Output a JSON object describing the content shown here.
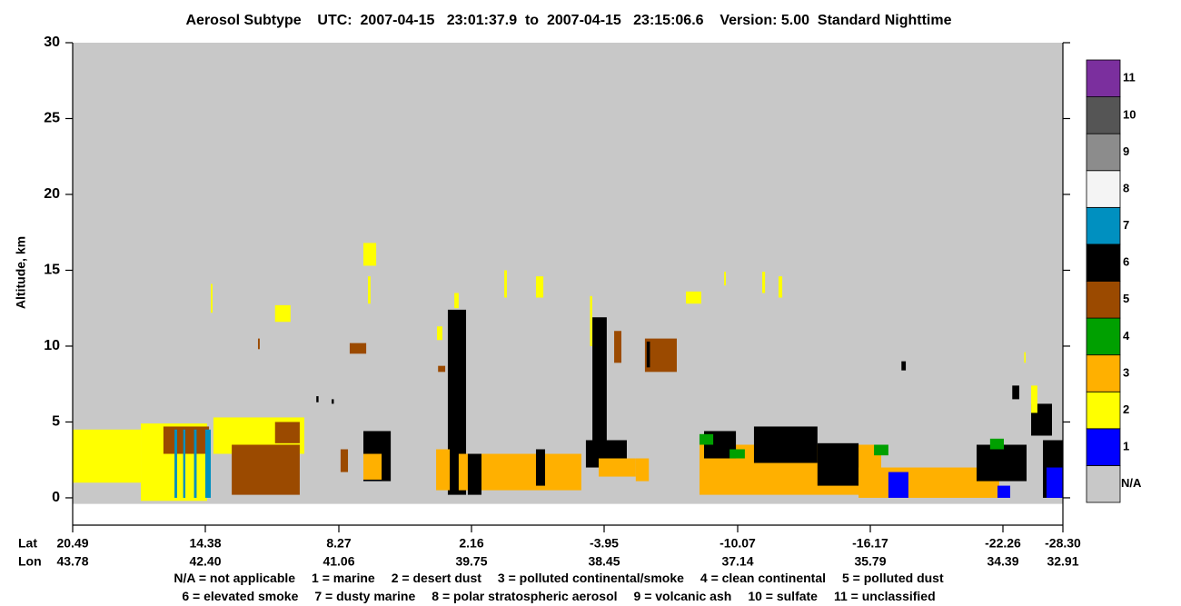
{
  "chart_data": {
    "type": "curtain",
    "title": "Aerosol Subtype    UTC:  2007-04-15   23:01:37.9  to  2007-04-15   23:15:06.6    Version: 5.00  Standard Nighttime",
    "y_label": "Altitude, km",
    "x_row_labels": [
      "Lat",
      "Lon"
    ],
    "xlim": [
      20.49,
      -28.3
    ],
    "xticks": [
      20.49,
      14.38,
      8.27,
      2.16,
      -3.95,
      -10.07,
      -16.17,
      -22.26,
      {
        "value": -28.3,
        "label": "-28.30"
      }
    ],
    "lon_labels": [
      "43.78",
      "42.40",
      "41.06",
      "39.75",
      "38.45",
      "37.14",
      "35.79",
      "34.39",
      "32.91"
    ],
    "ylim": [
      -1.8,
      30
    ],
    "yticks": [
      0,
      5,
      10,
      15,
      20,
      25,
      30
    ],
    "classes": [
      {
        "label": "N/A",
        "color": "#c8c8c8"
      },
      {
        "label": "1",
        "color": "#0000ff"
      },
      {
        "label": "2",
        "color": "#ffff00"
      },
      {
        "label": "3",
        "color": "#ffb000"
      },
      {
        "label": "4",
        "color": "#00a000"
      },
      {
        "label": "5",
        "color": "#9b4a00"
      },
      {
        "label": "6",
        "color": "#000000"
      },
      {
        "label": "7",
        "color": "#0090c0"
      },
      {
        "label": "8",
        "color": "#f4f4f4"
      },
      {
        "label": "9",
        "color": "#8c8c8c"
      },
      {
        "label": "10",
        "color": "#555555"
      },
      {
        "label": "11",
        "color": "#7b2f9e"
      }
    ],
    "key_rows": [
      [
        "N/A = not applicable",
        "1 = marine",
        "2 = desert dust",
        "3 = polluted continental/smoke",
        "4 = clean continental",
        "5 = polluted dust"
      ],
      [
        "6 = elevated smoke",
        "7 = dusty marine",
        "8 = polar stratospheric aerosol",
        "9 = volcanic ash",
        "10 = sulfate",
        "11 = unclassified"
      ]
    ],
    "blocks": [
      {
        "lat": [
          20.49,
          -28.3
        ],
        "alt": [
          -0.4,
          30
        ],
        "subtype": 0
      },
      {
        "lat": [
          20.49,
          17.35
        ],
        "alt": [
          1.0,
          4.5
        ],
        "subtype": 2
      },
      {
        "lat": [
          17.35,
          14.3
        ],
        "alt": [
          -0.2,
          4.9
        ],
        "subtype": 2
      },
      {
        "lat": [
          16.31,
          14.21
        ],
        "alt": [
          2.9,
          4.7
        ],
        "subtype": 5
      },
      {
        "lat": [
          15.8,
          15.68
        ],
        "alt": [
          0,
          4.5
        ],
        "subtype": 7
      },
      {
        "lat": [
          15.4,
          15.3
        ],
        "alt": [
          0,
          4.5
        ],
        "subtype": 7
      },
      {
        "lat": [
          14.9,
          14.78
        ],
        "alt": [
          0,
          4.5
        ],
        "subtype": 7
      },
      {
        "lat": [
          14.38,
          14.13
        ],
        "alt": [
          0,
          4.5
        ],
        "subtype": 7
      },
      {
        "lat": [
          14.01,
          9.85
        ],
        "alt": [
          2.9,
          5.3
        ],
        "subtype": 2
      },
      {
        "lat": [
          13.17,
          10.06
        ],
        "alt": [
          0.2,
          3.5
        ],
        "subtype": 5
      },
      {
        "lat": [
          11.19,
          10.06
        ],
        "alt": [
          3.6,
          5.0
        ],
        "subtype": 5
      },
      {
        "lat": [
          11.19,
          10.48
        ],
        "alt": [
          11.6,
          12.7
        ],
        "subtype": 2
      },
      {
        "lat": [
          11.97,
          11.89
        ],
        "alt": [
          9.8,
          10.5
        ],
        "subtype": 5
      },
      {
        "lat": [
          14.13,
          14.05
        ],
        "alt": [
          12.2,
          14.1
        ],
        "subtype": 2
      },
      {
        "lat": [
          7.14,
          6.55
        ],
        "alt": [
          15.3,
          16.8
        ],
        "subtype": 2
      },
      {
        "lat": [
          6.93,
          6.81
        ],
        "alt": [
          12.8,
          14.6
        ],
        "subtype": 2
      },
      {
        "lat": [
          7.77,
          7.01
        ],
        "alt": [
          9.5,
          10.2
        ],
        "subtype": 5
      },
      {
        "lat": [
          7.14,
          5.88
        ],
        "alt": [
          1.1,
          4.4
        ],
        "subtype": 6
      },
      {
        "lat": [
          7.14,
          6.3
        ],
        "alt": [
          1.2,
          2.9
        ],
        "subtype": 3
      },
      {
        "lat": [
          8.19,
          7.85
        ],
        "alt": [
          1.7,
          3.2
        ],
        "subtype": 5
      },
      {
        "lat": [
          9.3,
          9.2
        ],
        "alt": [
          6.3,
          6.7
        ],
        "subtype": 6
      },
      {
        "lat": [
          8.6,
          8.5
        ],
        "alt": [
          6.2,
          6.5
        ],
        "subtype": 6
      },
      {
        "lat": [
          3.25,
          2.41
        ],
        "alt": [
          0.2,
          12.4
        ],
        "subtype": 6
      },
      {
        "lat": [
          2.95,
          2.75
        ],
        "alt": [
          12.5,
          13.5
        ],
        "subtype": 2
      },
      {
        "lat": [
          3.75,
          3.5
        ],
        "alt": [
          10.4,
          11.3
        ],
        "subtype": 2
      },
      {
        "lat": [
          3.7,
          3.37
        ],
        "alt": [
          8.3,
          8.7
        ],
        "subtype": 5
      },
      {
        "lat": [
          3.79,
          3.16
        ],
        "alt": [
          0.5,
          3.2
        ],
        "subtype": 3
      },
      {
        "lat": [
          2.75,
          -2.9
        ],
        "alt": [
          0.5,
          2.9
        ],
        "subtype": 3
      },
      {
        "lat": [
          2.33,
          1.7
        ],
        "alt": [
          0.2,
          2.9
        ],
        "subtype": 6
      },
      {
        "lat": [
          -0.81,
          -1.23
        ],
        "alt": [
          0.8,
          3.2
        ],
        "subtype": 6
      },
      {
        "lat": [
          -3.41,
          -4.07
        ],
        "alt": [
          2.9,
          11.9
        ],
        "subtype": 6
      },
      {
        "lat": [
          -3.11,
          -4.99
        ],
        "alt": [
          2.0,
          3.8
        ],
        "subtype": 6
      },
      {
        "lat": [
          -3.7,
          -5.4
        ],
        "alt": [
          1.4,
          2.6
        ],
        "subtype": 3
      },
      {
        "lat": [
          -3.3,
          -3.4
        ],
        "alt": [
          10.0,
          13.3
        ],
        "subtype": 2
      },
      {
        "lat": [
          -4.41,
          -4.74
        ],
        "alt": [
          8.9,
          11.0
        ],
        "subtype": 5
      },
      {
        "lat": [
          0.65,
          0.53
        ],
        "alt": [
          13.2,
          15.0
        ],
        "subtype": 2
      },
      {
        "lat": [
          -0.81,
          -1.15
        ],
        "alt": [
          13.2,
          14.6
        ],
        "subtype": 2
      },
      {
        "lat": [
          -5.82,
          -7.28
        ],
        "alt": [
          8.3,
          10.5
        ],
        "subtype": 5
      },
      {
        "lat": [
          -5.9,
          -6.05
        ],
        "alt": [
          8.6,
          10.3
        ],
        "subtype": 6
      },
      {
        "lat": [
          -5.4,
          -6.0
        ],
        "alt": [
          1.1,
          2.6
        ],
        "subtype": 3
      },
      {
        "lat": [
          -7.7,
          -8.4
        ],
        "alt": [
          12.8,
          13.6
        ],
        "subtype": 2
      },
      {
        "lat": [
          -9.45,
          -9.53
        ],
        "alt": [
          14.0,
          14.9
        ],
        "subtype": 2
      },
      {
        "lat": [
          -11.2,
          -11.33
        ],
        "alt": [
          13.5,
          14.9
        ],
        "subtype": 2
      },
      {
        "lat": [
          -11.95,
          -12.12
        ],
        "alt": [
          13.2,
          14.6
        ],
        "subtype": 2
      },
      {
        "lat": [
          -8.32,
          -16.67
        ],
        "alt": [
          0.2,
          3.5
        ],
        "subtype": 3
      },
      {
        "lat": [
          -8.53,
          -9.99
        ],
        "alt": [
          2.6,
          4.4
        ],
        "subtype": 6
      },
      {
        "lat": [
          -10.82,
          -13.74
        ],
        "alt": [
          2.3,
          4.7
        ],
        "subtype": 6
      },
      {
        "lat": [
          -13.74,
          -15.63
        ],
        "alt": [
          0.8,
          3.6
        ],
        "subtype": 6
      },
      {
        "lat": [
          -8.32,
          -8.95
        ],
        "alt": [
          3.5,
          4.2
        ],
        "subtype": 4
      },
      {
        "lat": [
          -9.7,
          -10.4
        ],
        "alt": [
          2.6,
          3.2
        ],
        "subtype": 4
      },
      {
        "lat": [
          -16.34,
          -17.0
        ],
        "alt": [
          2.8,
          3.5
        ],
        "subtype": 4
      },
      {
        "lat": [
          -15.63,
          -22.09
        ],
        "alt": [
          0,
          2.0
        ],
        "subtype": 3
      },
      {
        "lat": [
          -17.0,
          -17.92
        ],
        "alt": [
          0,
          1.7
        ],
        "subtype": 1
      },
      {
        "lat": [
          -22.01,
          -22.99
        ],
        "alt": [
          0,
          0.8
        ],
        "subtype": 1
      },
      {
        "lat": [
          -21.05,
          -24.64
        ],
        "alt": [
          1.1,
          3.5
        ],
        "subtype": 6
      },
      {
        "lat": [
          -21.67,
          -22.35
        ],
        "alt": [
          3.2,
          3.9
        ],
        "subtype": 4
      },
      {
        "lat": [
          -25.1,
          -27.2
        ],
        "alt": [
          4.1,
          6.2
        ],
        "subtype": 6
      },
      {
        "lat": [
          -26.29,
          -28.3
        ],
        "alt": [
          0,
          3.8
        ],
        "subtype": 6
      },
      {
        "lat": [
          -26.65,
          -28.3
        ],
        "alt": [
          0,
          2.0
        ],
        "subtype": 1
      },
      {
        "lat": [
          -25.1,
          -25.73
        ],
        "alt": [
          5.6,
          7.4
        ],
        "subtype": 2
      },
      {
        "lat": [
          -17.6,
          -17.8
        ],
        "alt": [
          8.4,
          9.0
        ],
        "subtype": 6
      },
      {
        "lat": [
          -23.2,
          -23.9
        ],
        "alt": [
          6.5,
          7.4
        ],
        "subtype": 6
      },
      {
        "lat": [
          -24.4,
          -24.55
        ],
        "alt": [
          8.9,
          9.6
        ],
        "subtype": 2
      }
    ]
  }
}
